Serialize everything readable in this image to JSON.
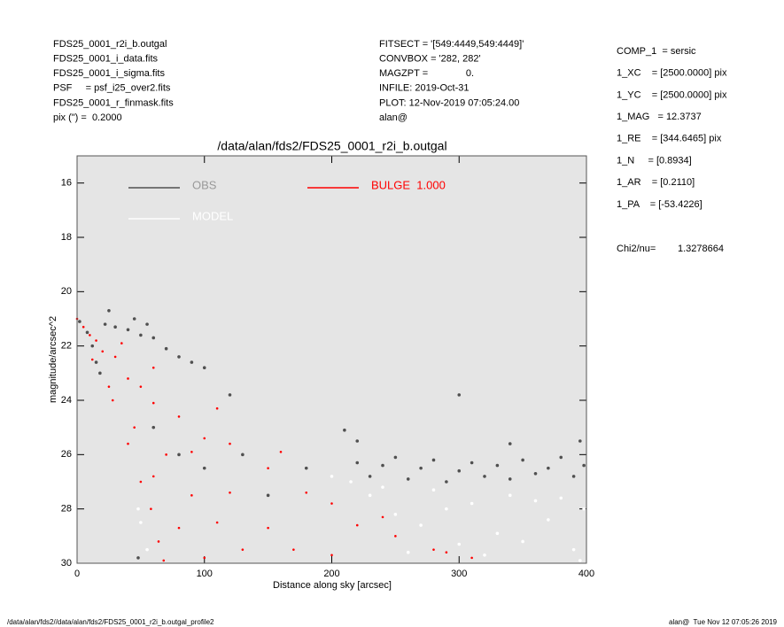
{
  "header": {
    "left": [
      "FDS25_0001_r2i_b.outgal",
      "FDS25_0001_i_data.fits",
      "FDS25_0001_i_sigma.fits",
      "PSF     = psf_i25_over2.fits",
      "FDS25_0001_r_finmask.fits",
      "pix (\") =  0.2000"
    ],
    "middle": [
      "FITSECT = '[549:4449,549:4449]'",
      "CONVBOX = '282, 282'",
      "MAGZPT =              0.",
      "INFILE: 2019-Oct-31",
      "PLOT: 12-Nov-2019 07:05:24.00",
      "alan@"
    ],
    "right": [
      "COMP_1  = sersic",
      "1_XC    = [2500.0000] pix",
      "1_YC    = [2500.0000] pix",
      "1_MAG   = 12.3737",
      "1_RE    = [344.6465] pix",
      "1_N     = [0.8934]",
      "1_AR    = [0.2110]",
      "1_PA    = [-53.4226]"
    ],
    "chi2": {
      "label": "Chi2/nu=",
      "value": "1.3278664"
    }
  },
  "footer": {
    "left": "/data/alan/fds2//data/alan/fds2/FDS25_0001_r2i_b.outgal_profile2",
    "right": "alan@  Tue Nov 12 07:05:26 2019"
  },
  "chart_data": {
    "type": "scatter",
    "title": "/data/alan/fds2/FDS25_0001_r2i_b.outgal",
    "x_label": "Distance along sky [arcsec]",
    "y_label": "magnitude/arcsec^2",
    "xlim": [
      0,
      400
    ],
    "xticks": [
      0,
      100,
      200,
      300,
      400
    ],
    "ylim": [
      30,
      15
    ],
    "yticks": [
      16,
      18,
      20,
      22,
      24,
      26,
      28,
      30
    ],
    "series": [
      {
        "name": "OBS",
        "color": "#505050",
        "x": [
          2,
          8,
          12,
          15,
          18,
          22,
          30,
          40,
          50,
          55,
          60,
          70,
          80,
          90,
          100,
          25,
          45,
          120,
          300,
          210,
          220,
          230,
          240,
          250,
          260,
          270,
          280,
          290,
          300,
          310,
          320,
          330,
          340,
          350,
          360,
          370,
          380,
          390,
          398,
          60,
          80,
          100,
          130,
          150,
          180,
          48,
          220,
          340,
          395
        ],
        "values": [
          21.1,
          21.5,
          22.0,
          22.6,
          23.0,
          21.2,
          21.3,
          21.4,
          21.6,
          21.2,
          21.7,
          22.1,
          22.4,
          22.6,
          22.8,
          20.7,
          21.0,
          23.8,
          23.8,
          25.1,
          26.3,
          26.8,
          26.4,
          26.1,
          26.9,
          26.5,
          26.2,
          27.0,
          26.6,
          26.3,
          26.8,
          26.4,
          26.9,
          26.2,
          26.7,
          26.5,
          26.1,
          26.8,
          26.4,
          25.0,
          26.0,
          26.5,
          26.0,
          27.5,
          26.5,
          29.8,
          25.5,
          25.6,
          25.5
        ]
      },
      {
        "name": "MODEL",
        "color": "#ffffff",
        "x": [
          230,
          250,
          270,
          290,
          310,
          330,
          350,
          370,
          390,
          260,
          300,
          360,
          380,
          240,
          280,
          320,
          340,
          398,
          50,
          55,
          48,
          200,
          215,
          395
        ],
        "values": [
          27.5,
          28.2,
          28.6,
          28.0,
          27.8,
          28.9,
          29.2,
          28.4,
          29.5,
          29.6,
          29.3,
          27.7,
          27.6,
          27.2,
          27.3,
          29.7,
          27.5,
          28.0,
          28.5,
          29.5,
          28.0,
          26.8,
          27.0,
          29.9
        ]
      },
      {
        "name": "BULGE  1.000",
        "color": "#ff0000",
        "x": [
          0,
          5,
          10,
          15,
          20,
          30,
          40,
          50,
          60,
          80,
          100,
          120,
          150,
          180,
          200,
          220,
          250,
          280,
          310,
          12,
          28,
          40,
          50,
          58,
          64,
          68,
          25,
          45,
          70,
          90,
          110,
          130,
          60,
          80,
          100,
          150,
          170,
          200,
          120,
          90,
          35,
          60,
          110,
          160,
          240,
          290
        ],
        "values": [
          21,
          21.3,
          21.6,
          21.8,
          22.2,
          22.4,
          23.2,
          23.5,
          24.1,
          24.6,
          25.4,
          25.6,
          26.5,
          27.4,
          27.8,
          28.6,
          29.0,
          29.5,
          29.8,
          22.5,
          24.0,
          25.6,
          27.0,
          28.0,
          29.2,
          29.9,
          23.5,
          25.0,
          26.0,
          27.5,
          28.5,
          29.5,
          26.8,
          28.7,
          29.8,
          28.7,
          29.5,
          29.7,
          27.4,
          25.9,
          21.9,
          22.8,
          24.3,
          25.9,
          28.3,
          29.6
        ]
      }
    ]
  }
}
